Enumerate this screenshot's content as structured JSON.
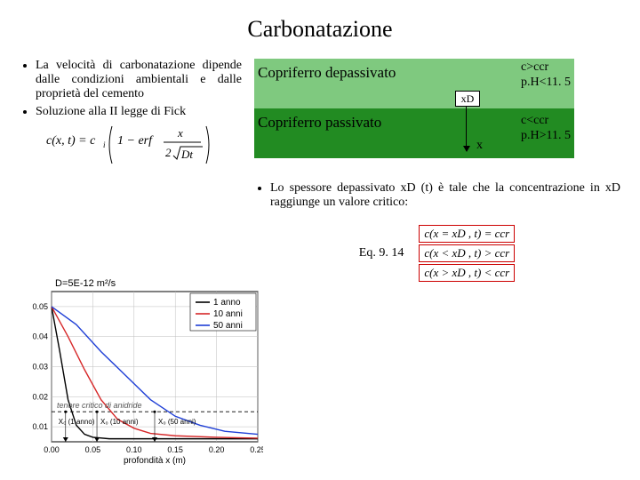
{
  "title": "Carbonatazione",
  "left_bullets": [
    "La velocità di carbonatazione dipende dalle condizioni ambientali e dalle proprietà del cemento",
    "Soluzione alla II legge di Fick"
  ],
  "diagram": {
    "label_top": "Copriferro depassivato",
    "label_bot": "Copriferro passivato",
    "xd": "xD",
    "x": "x",
    "cond_top_1": "c>ccr",
    "cond_top_2": "p.H<11. 5",
    "cond_bot_1": "c<ccr",
    "cond_bot_2": "p.H>11. 5",
    "band_top_color": "#7fc97f",
    "band_bot_color": "#228b22"
  },
  "right_bullet": "Lo spessore depassivato xD (t) è tale che la concentrazione in xD raggiunge un valore critico:",
  "eq_label": "Eq. 9. 14",
  "eq_lines": {
    "l1": "c(x = xD , t) = ccr",
    "l2": "c(x < xD , t) > ccr",
    "l3": "c(x > xD , t) < ccr"
  },
  "formula": {
    "lhs": "c(x, t) = c",
    "sub_i": "i",
    "one_minus": "1 − erf",
    "num": "x",
    "den_a": "2",
    "den_b": "Dt"
  },
  "chart": {
    "type": "line",
    "title": "D=5E-12 m²/s",
    "title_fontsize": 11,
    "legend": [
      "1 anno",
      "10 anni",
      "50 anni"
    ],
    "legend_colors": [
      "#000000",
      "#d62728",
      "#1f3fd6"
    ],
    "legend_fontsize": 10,
    "xlabel": "profondità x (m)",
    "ylabel_annot": "tenore critico di anidride",
    "crit_y": 0.015,
    "x_ticks": [
      0.0,
      0.05,
      0.1,
      0.15,
      0.2,
      0.25
    ],
    "y_ticks": [
      0.01,
      0.02,
      0.03,
      0.04,
      0.05
    ],
    "xlim": [
      0,
      0.25
    ],
    "ylim": [
      0.005,
      0.055
    ],
    "tick_fontsize": 9,
    "callouts": {
      "x1": {
        "text": "X₀ (1 anno)",
        "x": 0.017
      },
      "x2": {
        "text": "X₀ (10 anni)",
        "x": 0.055
      },
      "x3": {
        "text": "X₀ (50 anni)",
        "x": 0.125
      }
    },
    "series": {
      "1anno": {
        "x": [
          0.0,
          0.01,
          0.02,
          0.03,
          0.04,
          0.05,
          0.07,
          0.1,
          0.15,
          0.25
        ],
        "y": [
          0.05,
          0.035,
          0.019,
          0.0105,
          0.0075,
          0.0065,
          0.006,
          0.006,
          0.006,
          0.006
        ]
      },
      "10anni": {
        "x": [
          0.0,
          0.02,
          0.04,
          0.06,
          0.08,
          0.1,
          0.12,
          0.15,
          0.2,
          0.25
        ],
        "y": [
          0.05,
          0.04,
          0.029,
          0.019,
          0.0125,
          0.0095,
          0.0078,
          0.007,
          0.0065,
          0.0062
        ]
      },
      "50anni": {
        "x": [
          0.0,
          0.03,
          0.06,
          0.09,
          0.12,
          0.15,
          0.18,
          0.21,
          0.25
        ],
        "y": [
          0.05,
          0.044,
          0.035,
          0.027,
          0.019,
          0.0135,
          0.0105,
          0.0085,
          0.0075
        ]
      }
    },
    "grid_color": "#bdbdbd",
    "background_color": "#ffffff",
    "axis_color": "#000000",
    "line_width": 1.4
  }
}
